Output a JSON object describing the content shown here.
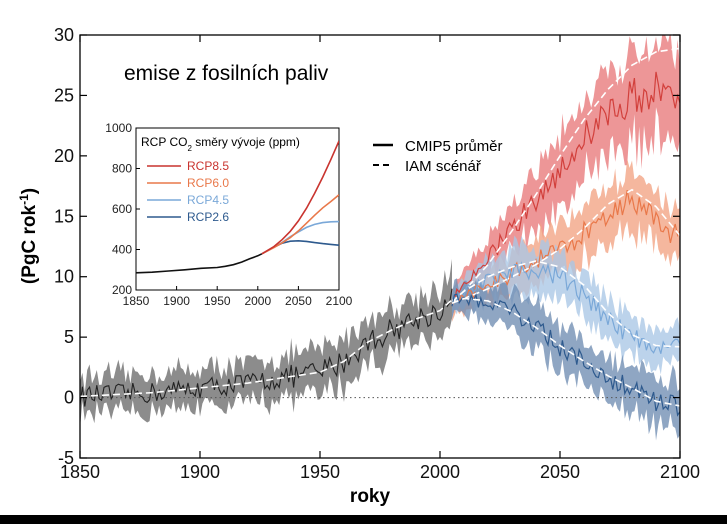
{
  "chart_data": {
    "type": "line",
    "annotation": "emise z fosilních paliv",
    "xlabel": "roky",
    "ylabel_main": "(PgC rok",
    "ylabel_sup": "-1",
    "ylabel_end": ")",
    "xlim": [
      1850,
      2100
    ],
    "ylim": [
      -5,
      30
    ],
    "xticks": [
      1850,
      1900,
      1950,
      2000,
      2050,
      2100
    ],
    "yticks": [
      -5,
      0,
      5,
      10,
      15,
      20,
      25,
      30
    ],
    "legend": [
      {
        "label": "CMIP5 průměr",
        "style": "solid"
      },
      {
        "label": "IAM scénář",
        "style": "dashed"
      }
    ],
    "historical": {
      "name": "historical",
      "color": "#222222",
      "band_color": "#8c8c8c",
      "x": [
        1850,
        1860,
        1870,
        1880,
        1890,
        1900,
        1910,
        1920,
        1930,
        1940,
        1950,
        1960,
        1970,
        1980,
        1990,
        2000,
        2005
      ],
      "values": [
        0.1,
        0.2,
        0.3,
        0.4,
        0.6,
        0.8,
        1.0,
        1.2,
        1.5,
        1.8,
        2.1,
        3.0,
        4.6,
        5.6,
        6.5,
        7.2,
        8.1
      ],
      "spread": [
        1.6,
        1.6,
        1.6,
        1.6,
        1.6,
        1.6,
        1.6,
        1.6,
        1.7,
        1.8,
        1.9,
        1.9,
        1.9,
        1.9,
        1.9,
        1.9,
        1.9
      ]
    },
    "series": [
      {
        "name": "RCP8.5",
        "color": "#d2403c",
        "band_color": "#e8797a",
        "x": [
          2005,
          2010,
          2020,
          2030,
          2040,
          2050,
          2060,
          2070,
          2080,
          2090,
          2100
        ],
        "values": [
          8.2,
          9.0,
          11.5,
          14.0,
          16.5,
          19.0,
          21.5,
          23.5,
          25.0,
          25.5,
          25.5
        ],
        "iam": [
          8.0,
          8.8,
          11.0,
          13.8,
          16.8,
          20.0,
          23.0,
          25.5,
          27.5,
          28.6,
          28.9
        ],
        "spread": [
          1.0,
          1.2,
          1.5,
          2.0,
          2.5,
          3.0,
          3.3,
          3.5,
          3.6,
          3.7,
          3.8
        ]
      },
      {
        "name": "RCP6.0",
        "color": "#e9784a",
        "band_color": "#f2a383",
        "x": [
          2005,
          2010,
          2020,
          2030,
          2040,
          2050,
          2060,
          2070,
          2080,
          2090,
          2100
        ],
        "values": [
          8.0,
          8.5,
          9.2,
          10.2,
          11.2,
          12.3,
          13.6,
          15.2,
          16.5,
          15.0,
          13.0
        ],
        "iam": [
          7.9,
          8.2,
          9.0,
          10.0,
          11.0,
          12.3,
          14.0,
          16.0,
          17.2,
          15.8,
          13.4
        ],
        "spread": [
          1.0,
          1.2,
          1.4,
          1.6,
          1.8,
          2.0,
          2.1,
          2.2,
          2.3,
          2.3,
          2.3
        ]
      },
      {
        "name": "RCP4.5",
        "color": "#7aa8d8",
        "band_color": "#a9c6e6",
        "x": [
          2005,
          2010,
          2020,
          2030,
          2040,
          2050,
          2060,
          2070,
          2080,
          2090,
          2100
        ],
        "values": [
          8.0,
          8.6,
          9.6,
          10.3,
          10.8,
          10.0,
          8.4,
          6.4,
          5.0,
          4.3,
          4.3
        ],
        "iam": [
          7.9,
          8.8,
          10.0,
          10.8,
          11.3,
          10.8,
          9.3,
          7.0,
          5.2,
          4.3,
          4.2
        ],
        "spread": [
          1.0,
          1.3,
          1.6,
          1.9,
          2.0,
          2.0,
          1.9,
          1.8,
          1.6,
          1.5,
          1.5
        ]
      },
      {
        "name": "RCP2.6",
        "color": "#2e5a8e",
        "band_color": "#6f8db2",
        "x": [
          2005,
          2010,
          2020,
          2030,
          2040,
          2050,
          2060,
          2070,
          2080,
          2090,
          2100
        ],
        "values": [
          8.0,
          8.2,
          7.9,
          7.2,
          5.8,
          4.2,
          2.9,
          1.7,
          0.6,
          -0.4,
          -0.8
        ],
        "iam": [
          7.8,
          8.2,
          8.0,
          7.1,
          5.8,
          4.3,
          3.0,
          1.8,
          0.8,
          -0.3,
          -0.7
        ],
        "spread": [
          1.0,
          1.2,
          1.4,
          1.6,
          1.8,
          1.9,
          1.9,
          2.0,
          2.0,
          2.0,
          2.1
        ]
      }
    ],
    "inset": {
      "title_pre": "RCP CO",
      "title_sub": "2",
      "title_post": " směry vývoje (ppm)",
      "xlim": [
        1850,
        2100
      ],
      "ylim": [
        200,
        1000
      ],
      "xticks": [
        1850,
        1900,
        1950,
        2000,
        2050,
        2100
      ],
      "yticks": [
        200,
        400,
        600,
        800,
        1000
      ],
      "historical": {
        "color": "#111111",
        "x": [
          1850,
          1870,
          1890,
          1910,
          1930,
          1950,
          1960,
          1970,
          1980,
          1990,
          2000,
          2005
        ],
        "values": [
          285,
          288,
          294,
          300,
          307,
          311,
          317,
          325,
          338,
          354,
          369,
          379
        ]
      },
      "series": [
        {
          "name": "RCP8.5",
          "color": "#c9342f",
          "x": [
            2005,
            2020,
            2030,
            2040,
            2050,
            2060,
            2070,
            2080,
            2090,
            2100
          ],
          "values": [
            379,
            415,
            449,
            490,
            541,
            604,
            677,
            758,
            845,
            936
          ]
        },
        {
          "name": "RCP6.0",
          "color": "#e9784a",
          "x": [
            2005,
            2020,
            2030,
            2040,
            2050,
            2060,
            2070,
            2080,
            2090,
            2100
          ],
          "values": [
            379,
            410,
            433,
            459,
            492,
            530,
            569,
            606,
            637,
            670
          ]
        },
        {
          "name": "RCP4.5",
          "color": "#7aa8d8",
          "x": [
            2005,
            2020,
            2030,
            2040,
            2050,
            2060,
            2070,
            2080,
            2090,
            2100
          ],
          "values": [
            379,
            412,
            435,
            463,
            487,
            509,
            524,
            533,
            537,
            538
          ]
        },
        {
          "name": "RCP2.6",
          "color": "#2e5a8e",
          "x": [
            2005,
            2020,
            2030,
            2040,
            2050,
            2060,
            2070,
            2080,
            2090,
            2100
          ],
          "values": [
            379,
            412,
            431,
            441,
            443,
            440,
            434,
            429,
            425,
            421
          ]
        }
      ]
    }
  }
}
